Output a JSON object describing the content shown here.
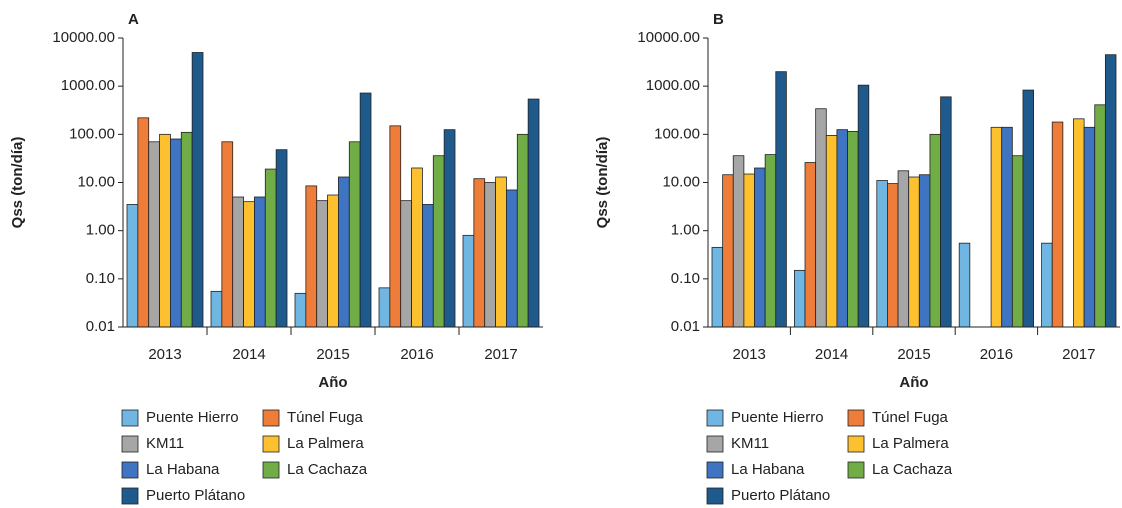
{
  "chart_data": [
    {
      "type": "bar",
      "title": "A",
      "x_label": "Año",
      "y_label": "Qss (ton/día)",
      "log_scale": true,
      "categories": [
        "2013",
        "2014",
        "2015",
        "2016",
        "2017"
      ],
      "ylim": [
        0.01,
        10000
      ],
      "yticks": [
        {
          "value": 0.01,
          "label": "0.01"
        },
        {
          "value": 0.1,
          "label": "0.10"
        },
        {
          "value": 1,
          "label": "1.00"
        },
        {
          "value": 10,
          "label": "10.00"
        },
        {
          "value": 100,
          "label": "100.00"
        },
        {
          "value": 1000,
          "label": "1000.00"
        },
        {
          "value": 10000,
          "label": "10000.00"
        }
      ],
      "series": [
        {
          "name": "Puente Hierro",
          "color": "#6fb6e3",
          "values": [
            3.5,
            0.055,
            0.05,
            0.065,
            0.8
          ]
        },
        {
          "name": "Túnel Fuga",
          "color": "#ef7d3a",
          "values": [
            220,
            70,
            8.5,
            150,
            12
          ]
        },
        {
          "name": "KM11",
          "color": "#a6a6a6",
          "values": [
            70,
            5,
            4.2,
            4.2,
            10
          ]
        },
        {
          "name": "La Palmera",
          "color": "#fdc02f",
          "values": [
            100,
            4,
            5.5,
            20,
            13
          ]
        },
        {
          "name": "La Habana",
          "color": "#3e74c2",
          "values": [
            80,
            5,
            13,
            3.5,
            7
          ]
        },
        {
          "name": "La Cachaza",
          "color": "#70ad47",
          "values": [
            110,
            19,
            70,
            36,
            100
          ]
        },
        {
          "name": "Puerto Plátano",
          "color": "#1f5a8c",
          "values": [
            5000,
            48,
            720,
            125,
            540
          ]
        }
      ]
    },
    {
      "type": "bar",
      "title": "B",
      "x_label": "Año",
      "y_label": "Qss (ton/día)",
      "log_scale": true,
      "categories": [
        "2013",
        "2014",
        "2015",
        "2016",
        "2017"
      ],
      "ylim": [
        0.01,
        10000
      ],
      "yticks": [
        {
          "value": 0.01,
          "label": "0.01"
        },
        {
          "value": 0.1,
          "label": "0.10"
        },
        {
          "value": 1,
          "label": "1.00"
        },
        {
          "value": 10,
          "label": "10.00"
        },
        {
          "value": 100,
          "label": "100.00"
        },
        {
          "value": 1000,
          "label": "1000.00"
        },
        {
          "value": 10000,
          "label": "10000.00"
        }
      ],
      "series": [
        {
          "name": "Puente Hierro",
          "color": "#6fb6e3",
          "values": [
            0.45,
            0.15,
            11,
            0.55,
            0.55
          ]
        },
        {
          "name": "Túnel Fuga",
          "color": "#ef7d3a",
          "values": [
            14.5,
            26,
            9.5,
            null,
            180
          ]
        },
        {
          "name": "KM11",
          "color": "#a6a6a6",
          "values": [
            36,
            340,
            17.5,
            null,
            null
          ]
        },
        {
          "name": "La Palmera",
          "color": "#fdc02f",
          "values": [
            15,
            95,
            13,
            140,
            210
          ]
        },
        {
          "name": "La Habana",
          "color": "#3e74c2",
          "values": [
            20,
            125,
            14.5,
            140,
            140
          ]
        },
        {
          "name": "La Cachaza",
          "color": "#70ad47",
          "values": [
            38,
            115,
            100,
            36,
            410
          ]
        },
        {
          "name": "Puerto Plátano",
          "color": "#1f5a8c",
          "values": [
            2000,
            1050,
            600,
            830,
            4500
          ]
        }
      ]
    }
  ]
}
